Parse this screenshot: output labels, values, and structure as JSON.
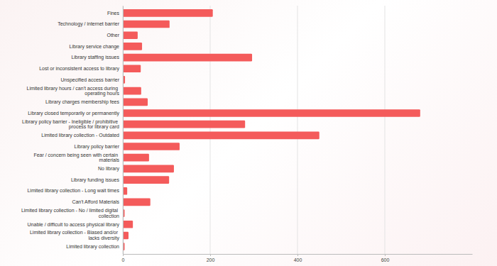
{
  "chart_data": {
    "type": "bar",
    "orientation": "horizontal",
    "categories": [
      "Fines",
      "Technology / internet barrier",
      "Other",
      "Library service change",
      "Library staffing issues",
      "Lost or inconsistent access to library",
      "Unspecified access barrier",
      "Limited library hours / can't access during operating hours",
      "Library charges membership fees",
      "Library closed temporarily or permanently",
      "Library policy barrier - Ineligible / prohibitive process for library card",
      "Limited library collection - Outdated",
      "Library policy barrier",
      "Fear / concern being seen with certain materials",
      "No library",
      "Library funding issues",
      "Limited library collection - Long wait times",
      "Can't Afford Materials",
      "Limited library collection - No / limited digital collection",
      "Unable / difficult to access physical library",
      "Limited library collection - Biased and/or lacks diversity",
      "Limited library collection"
    ],
    "values": [
      206,
      107,
      34,
      44,
      296,
      41,
      5,
      42,
      57,
      681,
      280,
      450,
      130,
      60,
      117,
      106,
      10,
      63,
      4,
      23,
      13,
      4
    ],
    "color": "#f45b5b",
    "xlim": [
      0,
      800
    ],
    "xticks": [
      0,
      200,
      400,
      600
    ],
    "grid": true
  }
}
